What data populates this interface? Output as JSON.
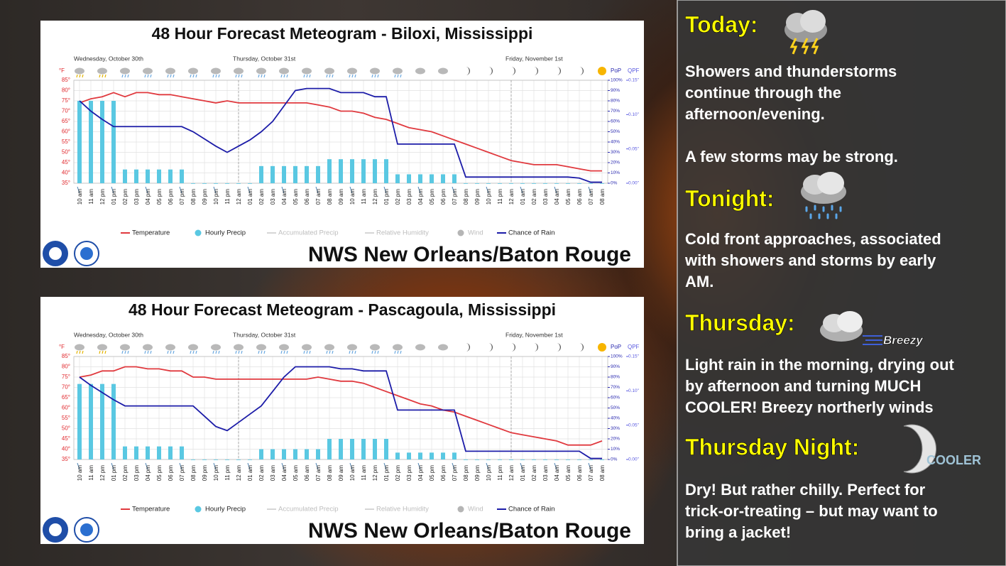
{
  "chart_data": [
    {
      "type": "meteogram",
      "title": "48 Hour Forecast Meteogram - Biloxi, Mississippi",
      "day_labels": [
        "Wednesday, October 30th",
        "Thursday, October 31st",
        "Friday, November 1st"
      ],
      "categories": [
        "10 am",
        "11 am",
        "12 pm",
        "01 pm",
        "02 pm",
        "03 pm",
        "04 pm",
        "05 pm",
        "06 pm",
        "07 pm",
        "08 pm",
        "09 pm",
        "10 pm",
        "11 pm",
        "12 am",
        "01 am",
        "02 am",
        "03 am",
        "04 am",
        "05 am",
        "06 am",
        "07 am",
        "08 am",
        "09 am",
        "10 am",
        "11 am",
        "12 pm",
        "01 pm",
        "02 pm",
        "03 pm",
        "04 pm",
        "05 pm",
        "06 pm",
        "07 pm",
        "08 pm",
        "09 pm",
        "10 pm",
        "11 pm",
        "12 am",
        "01 am",
        "02 am",
        "03 am",
        "04 am",
        "05 am",
        "06 am",
        "07 am",
        "08 am"
      ],
      "y_unit": "°F",
      "y2_label": "PoP",
      "y3_label": "QPF",
      "ylim": [
        35,
        85
      ],
      "yticks": [
        {
          "value": 35,
          "label": "35°"
        },
        {
          "value": 40,
          "label": "40°"
        },
        {
          "value": 45,
          "label": "45°"
        },
        {
          "value": 50,
          "label": "50°"
        },
        {
          "value": 55,
          "label": "55°"
        },
        {
          "value": 60,
          "label": "60°"
        },
        {
          "value": 65,
          "label": "65°"
        },
        {
          "value": 70,
          "label": "70°"
        },
        {
          "value": 75,
          "label": "75°"
        },
        {
          "value": 80,
          "label": "80°"
        },
        {
          "value": 85,
          "label": "85°"
        }
      ],
      "y2lim": [
        0,
        100
      ],
      "y2ticks": [
        {
          "value": 0,
          "label": "0%"
        },
        {
          "value": 10,
          "label": "10%"
        },
        {
          "value": 20,
          "label": "20%"
        },
        {
          "value": 30,
          "label": "30%"
        },
        {
          "value": 40,
          "label": "40%"
        },
        {
          "value": 50,
          "label": "50%"
        },
        {
          "value": 60,
          "label": "60%"
        },
        {
          "value": 70,
          "label": "70%"
        },
        {
          "value": 80,
          "label": "80%"
        },
        {
          "value": 90,
          "label": "90%"
        },
        {
          "value": 100,
          "label": "100%"
        }
      ],
      "y3lim": [
        0,
        0.15
      ],
      "y3ticks": [
        {
          "value": 0,
          "label": "0.00\""
        },
        {
          "value": 0.05,
          "label": "0.05\""
        },
        {
          "value": 0.1,
          "label": "0.10\""
        },
        {
          "value": 0.15,
          "label": "0.15\""
        }
      ],
      "grid": true,
      "series": [
        {
          "name": "Temperature",
          "type": "line",
          "axis": "y",
          "color": "#e0393e",
          "values": [
            74,
            76,
            77,
            79,
            77,
            79,
            79,
            78,
            78,
            77,
            76,
            75,
            74,
            75,
            74,
            74,
            74,
            74,
            74,
            74,
            74,
            73,
            72,
            70,
            70,
            69,
            67,
            66,
            64,
            62,
            61,
            60,
            58,
            56,
            54,
            52,
            50,
            48,
            46,
            45,
            44,
            44,
            44,
            43,
            42,
            41,
            41
          ]
        },
        {
          "name": "Hourly Precip",
          "type": "bar",
          "axis": "y3",
          "color": "#5ac8e2",
          "values": [
            0.12,
            0.12,
            0.12,
            0.12,
            0.02,
            0.02,
            0.02,
            0.02,
            0.02,
            0.02,
            0,
            0,
            0,
            0,
            0,
            0,
            0.025,
            0.025,
            0.025,
            0.025,
            0.025,
            0.025,
            0.035,
            0.035,
            0.035,
            0.035,
            0.035,
            0.035,
            0.013,
            0.013,
            0.013,
            0.013,
            0.013,
            0.013,
            0,
            0,
            0,
            0,
            0,
            0,
            0,
            0,
            0,
            0,
            0,
            0,
            0
          ]
        },
        {
          "name": "Accumulated Precip",
          "type": "line",
          "color": "#d6d6d6"
        },
        {
          "name": "Relative Humidity",
          "type": "line",
          "color": "#d6d6d6"
        },
        {
          "name": "Wind",
          "type": "dot",
          "color": "#b5b5b5"
        },
        {
          "name": "Chance of Rain",
          "type": "line",
          "axis": "y2",
          "color": "#1c1ca8",
          "values": [
            80,
            70,
            62,
            55,
            55,
            55,
            55,
            55,
            55,
            55,
            50,
            43,
            36,
            30,
            36,
            42,
            50,
            60,
            75,
            90,
            92,
            92,
            92,
            88,
            88,
            88,
            84,
            84,
            38,
            38,
            38,
            38,
            38,
            38,
            6,
            6,
            6,
            6,
            6,
            6,
            6,
            6,
            6,
            6,
            5,
            1,
            1
          ]
        }
      ],
      "footer": "NWS New Orleans/Baton Rouge"
    },
    {
      "type": "meteogram",
      "title": "48 Hour Forecast Meteogram - Pascagoula, Mississippi",
      "day_labels": [
        "Wednesday, October 30th",
        "Thursday, October 31st",
        "Friday, November 1st"
      ],
      "categories": [
        "10 am",
        "11 am",
        "12 pm",
        "01 pm",
        "02 pm",
        "03 pm",
        "04 pm",
        "05 pm",
        "06 pm",
        "07 pm",
        "08 pm",
        "09 pm",
        "10 pm",
        "11 pm",
        "12 am",
        "01 am",
        "02 am",
        "03 am",
        "04 am",
        "05 am",
        "06 am",
        "07 am",
        "08 am",
        "09 am",
        "10 am",
        "11 am",
        "12 pm",
        "01 pm",
        "02 pm",
        "03 pm",
        "04 pm",
        "05 pm",
        "06 pm",
        "07 pm",
        "08 pm",
        "09 pm",
        "10 pm",
        "11 pm",
        "12 am",
        "01 am",
        "02 am",
        "03 am",
        "04 am",
        "05 am",
        "06 am",
        "07 am",
        "08 am"
      ],
      "y_unit": "°F",
      "y2_label": "PoP",
      "y3_label": "QPF",
      "ylim": [
        35,
        85
      ],
      "yticks": [
        {
          "value": 35,
          "label": "35°"
        },
        {
          "value": 40,
          "label": "40°"
        },
        {
          "value": 45,
          "label": "45°"
        },
        {
          "value": 50,
          "label": "50°"
        },
        {
          "value": 55,
          "label": "55°"
        },
        {
          "value": 60,
          "label": "60°"
        },
        {
          "value": 65,
          "label": "65°"
        },
        {
          "value": 70,
          "label": "70°"
        },
        {
          "value": 75,
          "label": "75°"
        },
        {
          "value": 80,
          "label": "80°"
        },
        {
          "value": 85,
          "label": "85°"
        }
      ],
      "y2lim": [
        0,
        100
      ],
      "y2ticks": [
        {
          "value": 0,
          "label": "0%"
        },
        {
          "value": 10,
          "label": "10%"
        },
        {
          "value": 20,
          "label": "20%"
        },
        {
          "value": 30,
          "label": "30%"
        },
        {
          "value": 40,
          "label": "40%"
        },
        {
          "value": 50,
          "label": "50%"
        },
        {
          "value": 60,
          "label": "60%"
        },
        {
          "value": 70,
          "label": "70%"
        },
        {
          "value": 80,
          "label": "80%"
        },
        {
          "value": 90,
          "label": "90%"
        },
        {
          "value": 100,
          "label": "100%"
        }
      ],
      "y3lim": [
        0,
        0.15
      ],
      "y3ticks": [
        {
          "value": 0,
          "label": "0.00\""
        },
        {
          "value": 0.05,
          "label": "0.05\""
        },
        {
          "value": 0.1,
          "label": "0.10\""
        },
        {
          "value": 0.15,
          "label": "0.15\""
        }
      ],
      "grid": true,
      "series": [
        {
          "name": "Temperature",
          "type": "line",
          "axis": "y",
          "color": "#e0393e",
          "values": [
            75,
            76,
            78,
            78,
            80,
            80,
            79,
            79,
            78,
            78,
            75,
            75,
            74,
            74,
            74,
            74,
            74,
            74,
            74,
            74,
            74,
            75,
            74,
            73,
            73,
            72,
            70,
            68,
            66,
            64,
            62,
            61,
            59,
            58,
            56,
            54,
            52,
            50,
            48,
            47,
            46,
            45,
            44,
            42,
            42,
            42,
            44
          ]
        },
        {
          "name": "Hourly Precip",
          "type": "bar",
          "axis": "y3",
          "color": "#5ac8e2",
          "values": [
            0.11,
            0.11,
            0.11,
            0.11,
            0.019,
            0.019,
            0.019,
            0.019,
            0.019,
            0.019,
            0,
            0,
            0,
            0,
            0,
            0,
            0.015,
            0.015,
            0.015,
            0.015,
            0.015,
            0.015,
            0.03,
            0.03,
            0.03,
            0.03,
            0.03,
            0.03,
            0.01,
            0.01,
            0.01,
            0.01,
            0.01,
            0.01,
            0,
            0,
            0,
            0,
            0,
            0,
            0,
            0,
            0,
            0,
            0,
            0,
            0
          ]
        },
        {
          "name": "Accumulated Precip",
          "type": "line",
          "color": "#d6d6d6"
        },
        {
          "name": "Relative Humidity",
          "type": "line",
          "color": "#d6d6d6"
        },
        {
          "name": "Wind",
          "type": "dot",
          "color": "#b5b5b5"
        },
        {
          "name": "Chance of Rain",
          "type": "line",
          "axis": "y2",
          "color": "#1c1ca8",
          "values": [
            80,
            72,
            65,
            58,
            52,
            52,
            52,
            52,
            52,
            52,
            52,
            42,
            32,
            28,
            36,
            44,
            52,
            66,
            80,
            90,
            90,
            90,
            90,
            88,
            88,
            86,
            86,
            86,
            48,
            48,
            48,
            48,
            48,
            48,
            8,
            8,
            8,
            8,
            8,
            8,
            8,
            8,
            8,
            8,
            8,
            1,
            1
          ]
        }
      ],
      "footer": "NWS New Orleans/Baton Rouge"
    }
  ],
  "panel": {
    "sections": [
      {
        "heading": "Today:",
        "paragraphs": [
          [
            "Showers and thunderstorms",
            "continue through the",
            "afternoon/evening."
          ],
          [
            "A few storms may be strong."
          ]
        ]
      },
      {
        "heading": "Tonight:",
        "paragraphs": [
          [
            "Cold front approaches, associated",
            "with showers and storms by early",
            "AM."
          ]
        ]
      },
      {
        "heading": "Thursday:",
        "badge": "Breezy",
        "paragraphs": [
          [
            "Light rain in the morning, drying out",
            "by afternoon and turning MUCH",
            "COOLER! Breezy northerly winds"
          ]
        ]
      },
      {
        "heading": "Thursday Night:",
        "badge": "COOLER",
        "paragraphs": [
          [
            "Dry! But rather chilly. Perfect for",
            "trick-or-treating – but may want to",
            "bring a jacket!"
          ]
        ]
      }
    ]
  }
}
